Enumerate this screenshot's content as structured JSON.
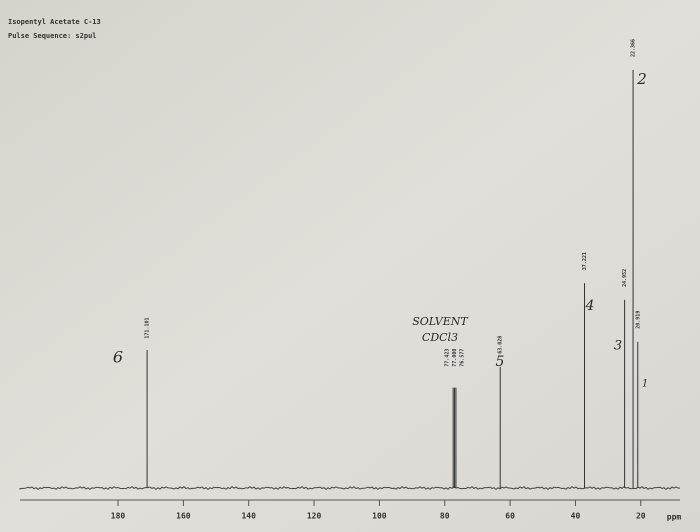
{
  "chart_data": {
    "type": "nmr",
    "title": "Isopentyl Acetate C-13",
    "subtitle": "Pulse Sequence: s2pul",
    "x_label": "ppm",
    "x": [
      171.101,
      77.423,
      77.0,
      76.577,
      63.028,
      37.221,
      24.952,
      22.366,
      20.919
    ],
    "peak_labels": [
      "171.101",
      "77.423",
      "77.000",
      "76.577",
      "63.028",
      "37.221",
      "24.952",
      "22.366",
      "20.919"
    ],
    "values": [
      33,
      24,
      24,
      24,
      29,
      49,
      45,
      100,
      35
    ],
    "color": "#333333",
    "xlim": [
      210,
      8
    ],
    "xticks": [
      180,
      160,
      140,
      120,
      100,
      80,
      60,
      40,
      20
    ],
    "ylim": [
      0,
      100
    ],
    "annotations": [
      "6",
      "SOLVENT",
      "CDCl3",
      "5",
      "4",
      "3",
      "2",
      "1"
    ]
  }
}
